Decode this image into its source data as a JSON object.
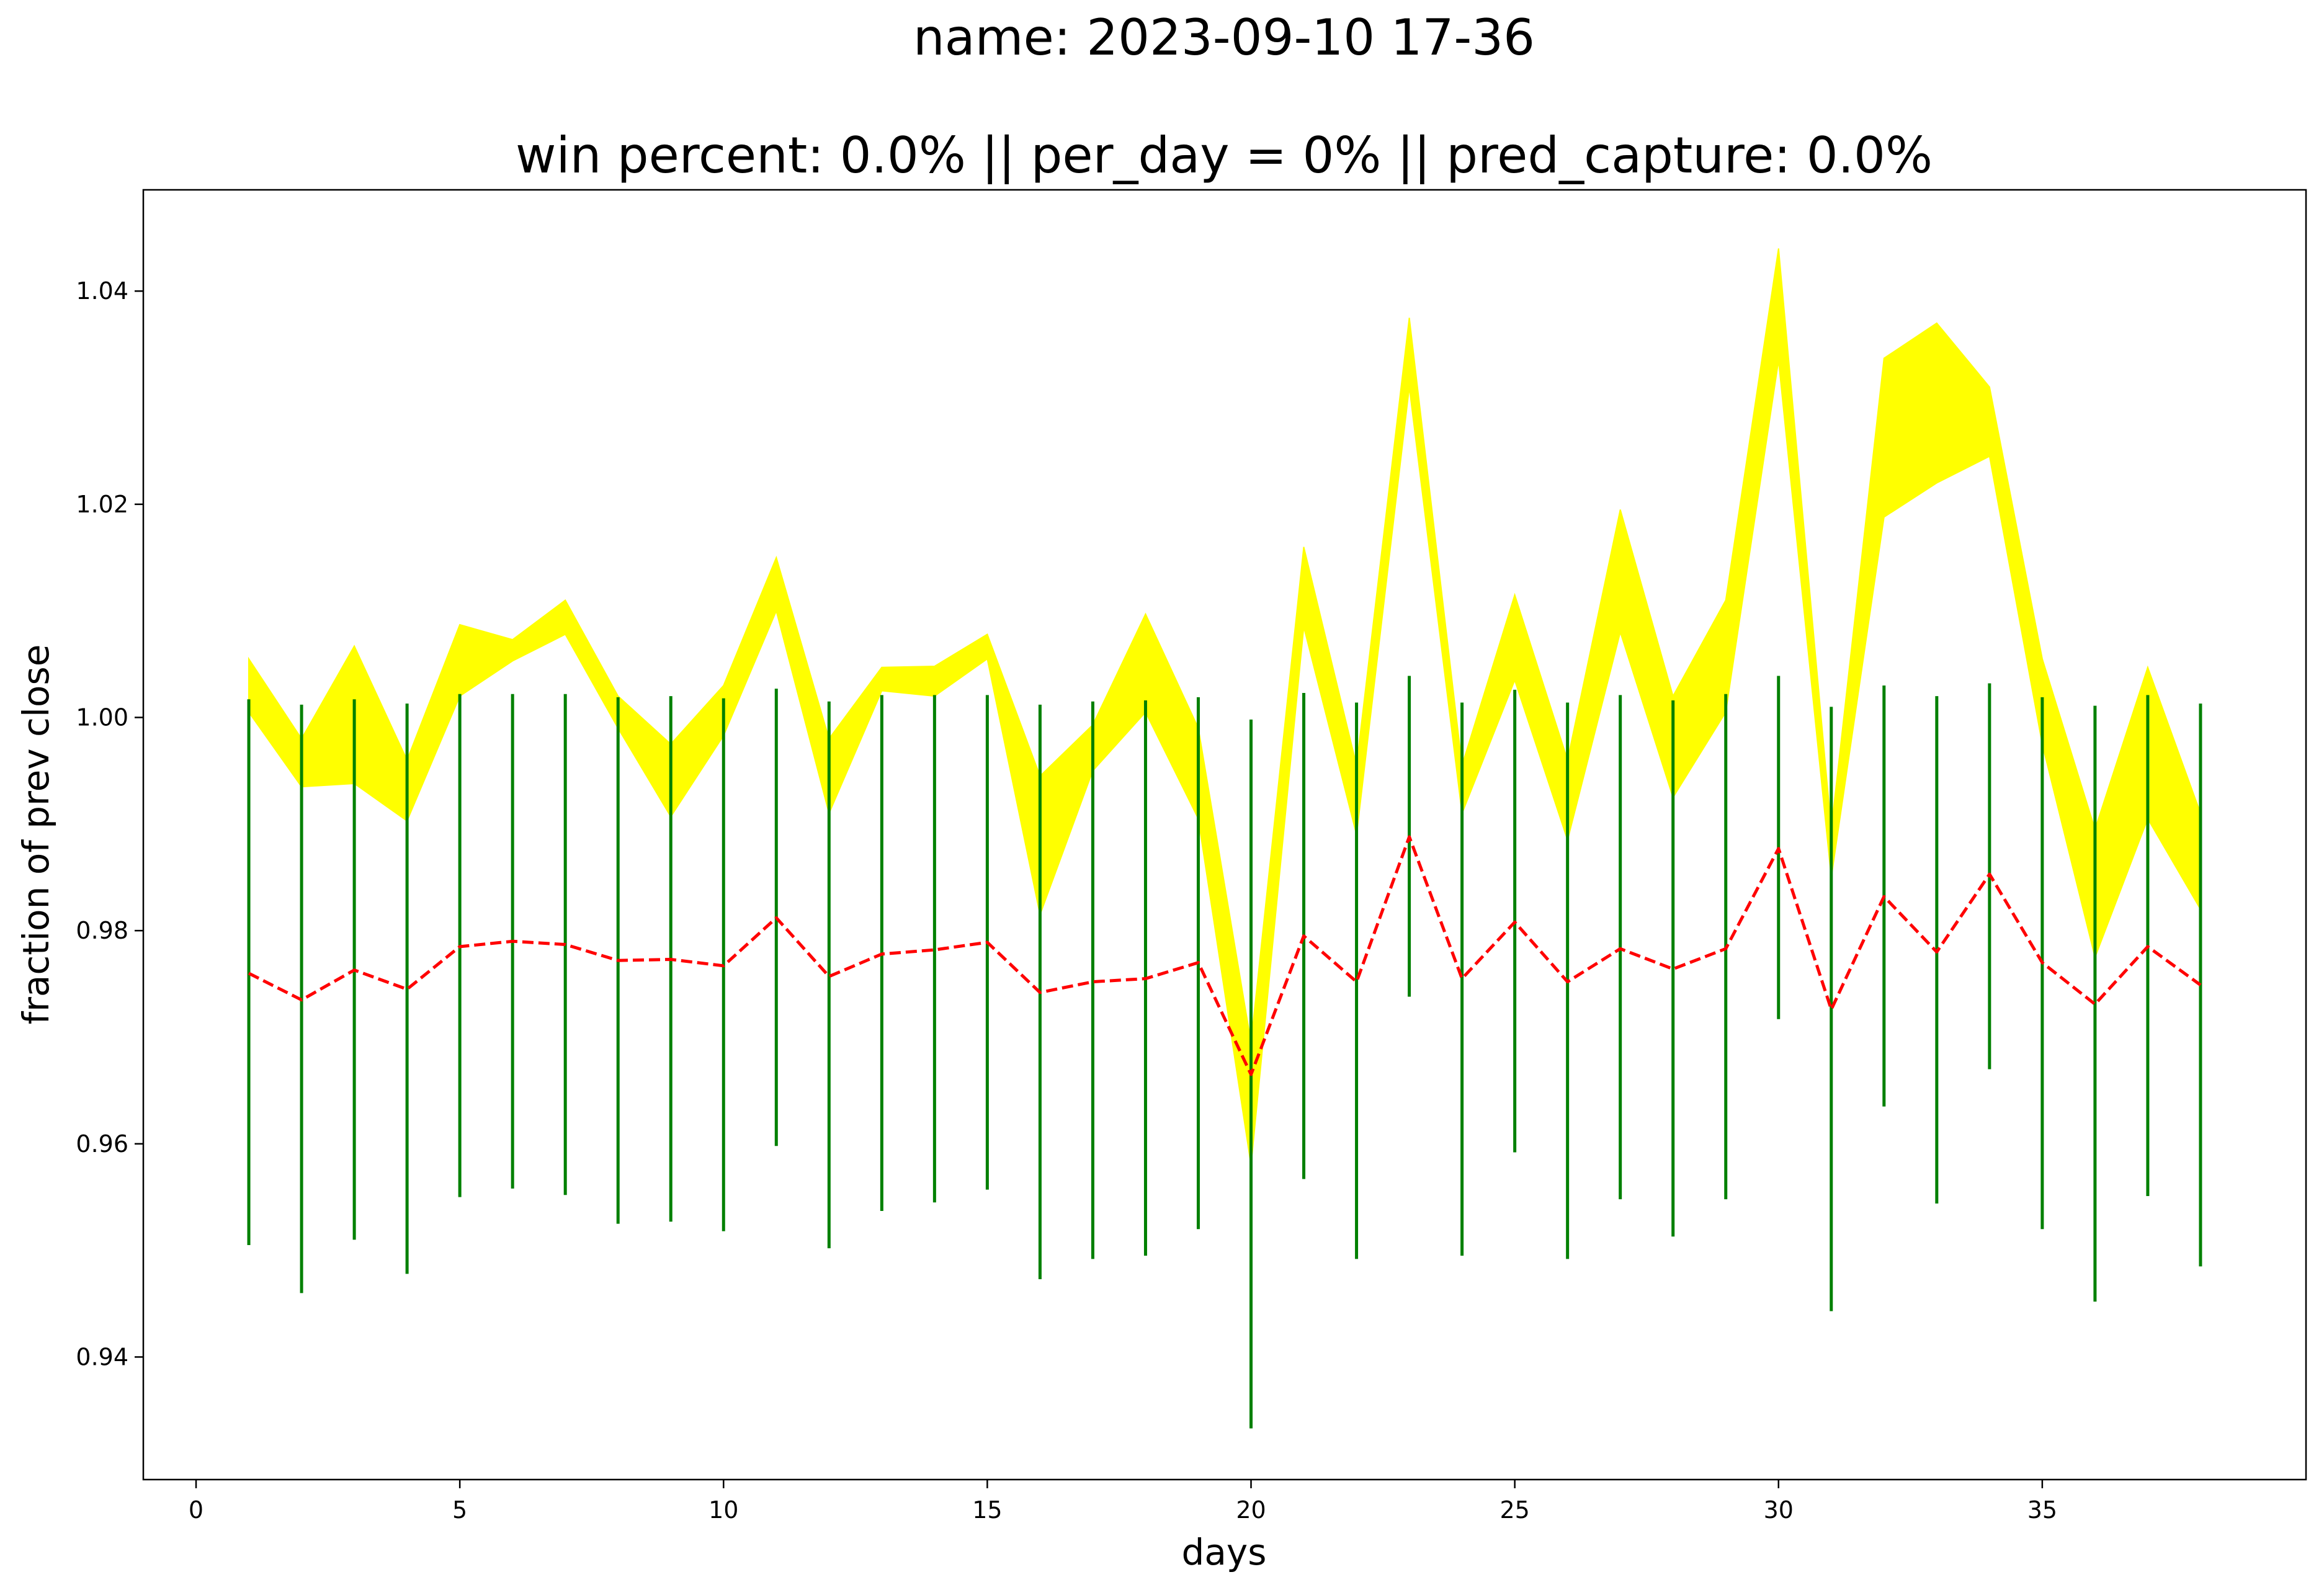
{
  "chart_data": {
    "type": "line",
    "title": "name: 2023-09-10 17-36",
    "subtitle": "win percent: 0.0%  || per_day = 0% || pred_capture: 0.0%",
    "xlabel": "days",
    "ylabel": "fraction of prev close",
    "xlim": [
      -1,
      40
    ],
    "ylim": [
      0.9285,
      1.0495
    ],
    "xticks": [
      0,
      5,
      10,
      15,
      20,
      25,
      30,
      35
    ],
    "yticks": [
      0.94,
      0.96,
      0.98,
      1.0,
      1.02,
      1.04
    ],
    "ytick_labels": [
      "0.94",
      "0.96",
      "0.98",
      "1.00",
      "1.02",
      "1.04"
    ],
    "grid": false,
    "colors": {
      "band": "#ffff00",
      "vlines": "#008000",
      "predicted": "#ff0000"
    },
    "x": [
      1,
      2,
      3,
      4,
      5,
      6,
      7,
      8,
      9,
      10,
      11,
      12,
      13,
      14,
      15,
      16,
      17,
      18,
      19,
      20,
      21,
      22,
      23,
      24,
      25,
      26,
      27,
      28,
      29,
      30,
      31,
      32,
      33,
      34,
      35,
      36,
      37,
      38
    ],
    "series": [
      {
        "kind": "band",
        "upper": [
          1.0055,
          0.998,
          1.0067,
          0.996,
          1.0087,
          1.0073,
          1.011,
          1.002,
          0.9975,
          1.003,
          1.015,
          0.998,
          1.0047,
          1.0048,
          1.0078,
          0.9945,
          0.9993,
          1.0097,
          0.999,
          0.9695,
          1.016,
          0.9955,
          1.0375,
          0.9955,
          1.0115,
          0.996,
          1.0195,
          1.002,
          1.011,
          1.044,
          0.9895,
          1.0337,
          1.037,
          1.031,
          1.0055,
          0.9895,
          1.0047,
          0.991
        ],
        "lower": [
          1.0005,
          0.9935,
          0.9938,
          0.9903,
          1.002,
          1.0053,
          1.0078,
          0.999,
          0.9907,
          0.9983,
          1.01,
          0.991,
          1.0025,
          1.002,
          1.0055,
          0.9815,
          0.995,
          1.0005,
          0.9905,
          0.958,
          1.0085,
          0.989,
          1.031,
          0.991,
          1.0035,
          0.9885,
          1.008,
          0.9925,
          1.0005,
          1.0335,
          0.985,
          1.0188,
          1.022,
          1.0245,
          0.9975,
          0.9775,
          0.9905,
          0.982
        ]
      },
      {
        "kind": "vlines",
        "ymin": [
          0.9505,
          0.946,
          0.951,
          0.9478,
          0.955,
          0.9558,
          0.9552,
          0.9525,
          0.9527,
          0.9518,
          0.9598,
          0.9502,
          0.9537,
          0.9545,
          0.9557,
          0.9473,
          0.9492,
          0.9495,
          0.952,
          0.9333,
          0.9567,
          0.9492,
          0.9738,
          0.9495,
          0.9592,
          0.9492,
          0.9548,
          0.9513,
          0.9548,
          0.9717,
          0.9443,
          0.9635,
          0.9544,
          0.967,
          0.952,
          0.9452,
          0.9551,
          0.9485
        ],
        "ymax": [
          1.0017,
          1.0012,
          1.0017,
          1.0013,
          1.0022,
          1.0022,
          1.0022,
          1.0019,
          1.002,
          1.0018,
          1.0027,
          1.0015,
          1.0021,
          1.0021,
          1.0021,
          1.0012,
          1.0015,
          1.0016,
          1.0019,
          0.9998,
          1.0023,
          1.0014,
          1.0039,
          1.0014,
          1.0026,
          1.0014,
          1.0021,
          1.0016,
          1.0022,
          1.0039,
          1.001,
          1.003,
          1.002,
          1.0032,
          1.0019,
          1.0011,
          1.0021,
          1.0013
        ]
      },
      {
        "kind": "line",
        "style": "dashed",
        "values": [
          0.976,
          0.9735,
          0.9763,
          0.9745,
          0.9785,
          0.979,
          0.9787,
          0.9772,
          0.9773,
          0.9767,
          0.9812,
          0.9757,
          0.9778,
          0.9782,
          0.9789,
          0.9742,
          0.9752,
          0.9755,
          0.977,
          0.9665,
          0.9795,
          0.9752,
          0.9888,
          0.9755,
          0.9808,
          0.9752,
          0.9783,
          0.9764,
          0.9783,
          0.9877,
          0.9726,
          0.9832,
          0.978,
          0.9853,
          0.977,
          0.9731,
          0.9785,
          0.9749
        ]
      }
    ]
  }
}
